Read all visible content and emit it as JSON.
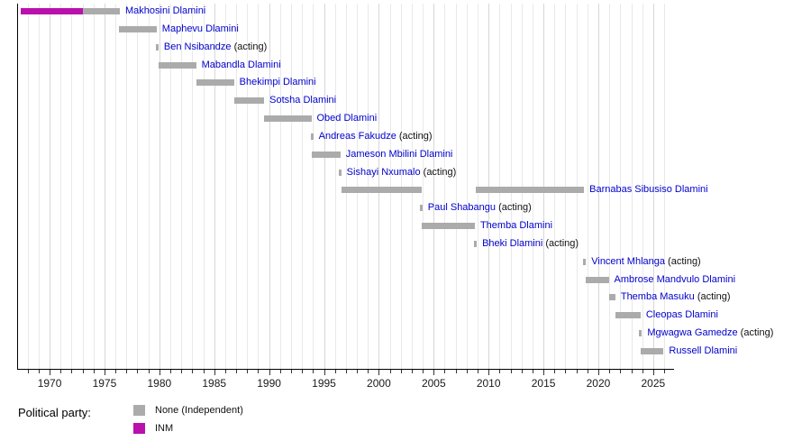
{
  "chart_data": {
    "type": "timeline",
    "description": "Gantt-style timeline of officeholders by year with party colors",
    "acting_suffix": " (acting)",
    "x_axis": {
      "domain": [
        1967.08,
        2026.9
      ],
      "tick_label_years": [
        1970,
        1975,
        1980,
        1985,
        1990,
        1995,
        2000,
        2005,
        2010,
        2015,
        2020,
        2025
      ],
      "minor_tick_step": 1,
      "grid": true
    },
    "legend": {
      "title": "Political party:",
      "entries": [
        {
          "key": "None",
          "label": "None (Independent)",
          "color": "#ababab"
        },
        {
          "key": "INM",
          "label": "INM",
          "color": "#ba10ad"
        }
      ]
    },
    "rows": [
      {
        "name": "Makhosini Dlamini",
        "acting": false,
        "segments": [
          {
            "start": 1967.4,
            "end": 1973.05,
            "party": "INM"
          },
          {
            "start": 1973.05,
            "end": 1976.4,
            "party": "None"
          }
        ]
      },
      {
        "name": "Maphevu Dlamini",
        "acting": false,
        "segments": [
          {
            "start": 1976.3,
            "end": 1979.75,
            "party": "None"
          }
        ]
      },
      {
        "name": "Ben Nsibandze",
        "acting": true,
        "marks": [
          1979.8
        ]
      },
      {
        "name": "Mabandla Dlamini",
        "acting": false,
        "segments": [
          {
            "start": 1979.9,
            "end": 1983.35,
            "party": "None"
          }
        ]
      },
      {
        "name": "Bhekimpi Dlamini",
        "acting": false,
        "segments": [
          {
            "start": 1983.35,
            "end": 1986.8,
            "party": "None"
          }
        ]
      },
      {
        "name": "Sotsha Dlamini",
        "acting": false,
        "segments": [
          {
            "start": 1986.8,
            "end": 1989.55,
            "party": "None"
          }
        ]
      },
      {
        "name": "Obed Dlamini",
        "acting": false,
        "segments": [
          {
            "start": 1989.55,
            "end": 1993.85,
            "party": "None"
          }
        ]
      },
      {
        "name": "Andreas Fakudze",
        "acting": true,
        "marks": [
          1993.9
        ]
      },
      {
        "name": "Jameson Mbilini Dlamini",
        "acting": false,
        "segments": [
          {
            "start": 1993.9,
            "end": 1996.5,
            "party": "None"
          }
        ]
      },
      {
        "name": "Sishayi Nxumalo",
        "acting": true,
        "marks": [
          1996.45
        ]
      },
      {
        "name": "Barnabas Sibusiso Dlamini",
        "acting": false,
        "segments": [
          {
            "start": 1996.6,
            "end": 2003.9,
            "party": "None"
          },
          {
            "start": 2008.85,
            "end": 2018.7,
            "party": "None"
          }
        ]
      },
      {
        "name": "Paul Shabangu",
        "acting": true,
        "marks": [
          2003.85
        ]
      },
      {
        "name": "Themba Dlamini",
        "acting": false,
        "segments": [
          {
            "start": 2003.9,
            "end": 2008.75,
            "party": "None"
          }
        ]
      },
      {
        "name": "Bheki Dlamini",
        "acting": true,
        "marks": [
          2008.8
        ]
      },
      {
        "name": "Vincent Mhlanga",
        "acting": true,
        "marks": [
          2018.75
        ]
      },
      {
        "name": "Ambrose Mandvulo Dlamini",
        "acting": false,
        "segments": [
          {
            "start": 2018.85,
            "end": 2020.95,
            "party": "None"
          }
        ]
      },
      {
        "name": "Themba Masuku",
        "acting": true,
        "segments": [
          {
            "start": 2020.95,
            "end": 2021.55,
            "party": "None"
          }
        ]
      },
      {
        "name": "Cleopas Dlamini",
        "acting": false,
        "segments": [
          {
            "start": 2021.55,
            "end": 2023.85,
            "party": "None"
          }
        ]
      },
      {
        "name": "Mgwagwa Gamedze",
        "acting": true,
        "marks": [
          2023.85
        ]
      },
      {
        "name": "Russell Dlamini",
        "acting": false,
        "segments": [
          {
            "start": 2023.9,
            "end": 2025.95,
            "party": "None"
          }
        ]
      }
    ]
  },
  "colors": {
    "bar_gray": "#ababab",
    "bar_magenta": "#ba10ad",
    "link_blue": "#0000cc",
    "axis": "#000000",
    "grid_minor": "#e9e9e9",
    "grid_major": "#d7d7d7"
  }
}
